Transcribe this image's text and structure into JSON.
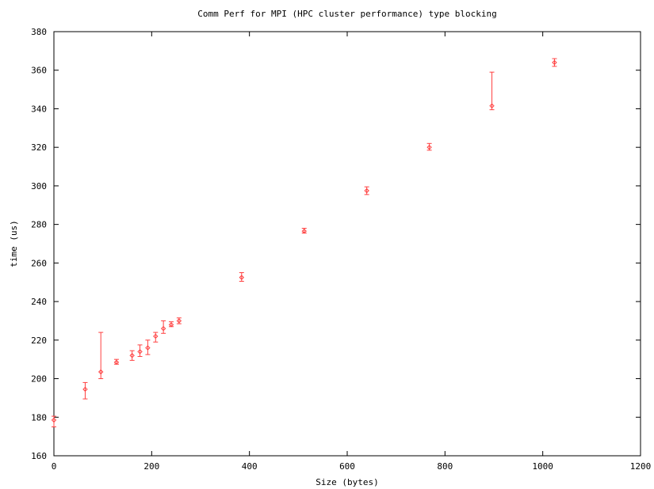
{
  "chart_data": {
    "type": "scatter",
    "title": "Comm Perf for MPI (HPC cluster performance) type blocking",
    "xlabel": "Size (bytes)",
    "ylabel": "time (us)",
    "xlim": [
      0,
      1200
    ],
    "ylim": [
      160,
      380
    ],
    "x_ticks": [
      "0",
      "200",
      "400",
      "600",
      "800",
      "1000",
      "1200"
    ],
    "y_ticks": [
      "160",
      "180",
      "200",
      "220",
      "240",
      "260",
      "280",
      "300",
      "320",
      "340",
      "360",
      "380"
    ],
    "grid": false,
    "legend": "none",
    "marker": "diamond",
    "color": "#ff4040",
    "points": [
      {
        "x": 0,
        "y": 178.5,
        "ylow": 175,
        "yhigh": 180.5
      },
      {
        "x": 64,
        "y": 194.5,
        "ylow": 189.5,
        "yhigh": 198
      },
      {
        "x": 96,
        "y": 203.5,
        "ylow": 200,
        "yhigh": 224
      },
      {
        "x": 128,
        "y": 208.5,
        "ylow": 207.5,
        "yhigh": 210
      },
      {
        "x": 160,
        "y": 212,
        "ylow": 209.5,
        "yhigh": 214.5
      },
      {
        "x": 176,
        "y": 214,
        "ylow": 211.5,
        "yhigh": 217.5
      },
      {
        "x": 192,
        "y": 216,
        "ylow": 212.5,
        "yhigh": 220
      },
      {
        "x": 208,
        "y": 222,
        "ylow": 219,
        "yhigh": 224
      },
      {
        "x": 224,
        "y": 226,
        "ylow": 223.5,
        "yhigh": 230
      },
      {
        "x": 240,
        "y": 228,
        "ylow": 227,
        "yhigh": 229.5
      },
      {
        "x": 256,
        "y": 230,
        "ylow": 228.5,
        "yhigh": 231.5
      },
      {
        "x": 384,
        "y": 252.5,
        "ylow": 250.5,
        "yhigh": 255
      },
      {
        "x": 512,
        "y": 276.5,
        "ylow": 275.5,
        "yhigh": 278
      },
      {
        "x": 640,
        "y": 297.5,
        "ylow": 295.5,
        "yhigh": 299.5
      },
      {
        "x": 768,
        "y": 320,
        "ylow": 318.5,
        "yhigh": 322
      },
      {
        "x": 896,
        "y": 341.5,
        "ylow": 339.5,
        "yhigh": 359
      },
      {
        "x": 1024,
        "y": 364,
        "ylow": 362,
        "yhigh": 366
      }
    ]
  }
}
